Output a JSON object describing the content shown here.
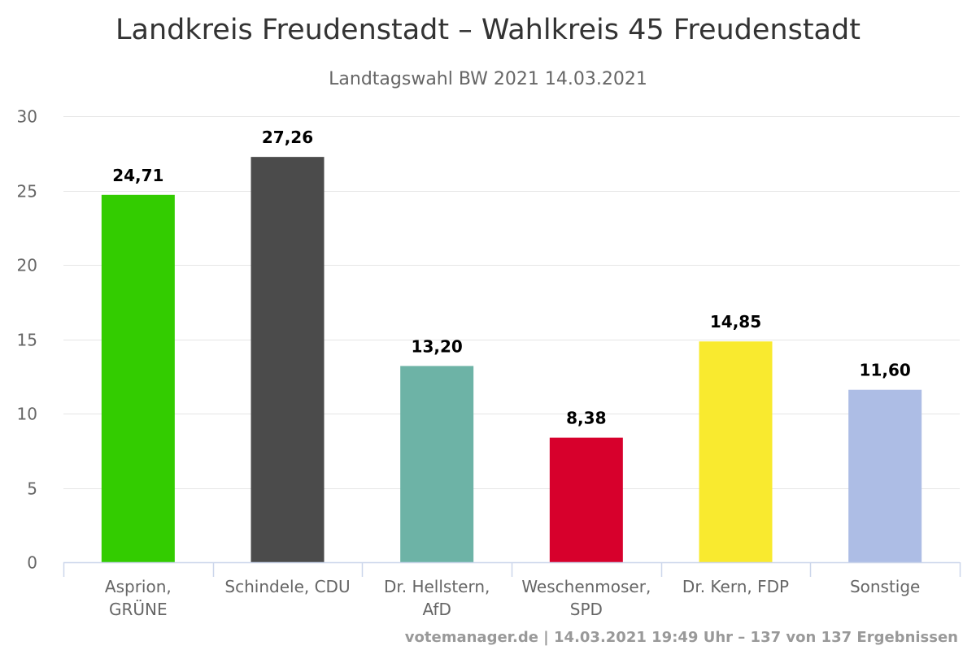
{
  "chart_data": {
    "type": "bar",
    "title": "Landkreis Freudenstadt – Wahlkreis 45 Freudenstadt",
    "subtitle": "Landtagswahl BW 2021 14.03.2021",
    "xlabel": "",
    "ylabel": "",
    "ylim": [
      0,
      30
    ],
    "yticks": [
      0,
      5,
      10,
      15,
      20,
      25,
      30
    ],
    "grid": true,
    "legend": "none",
    "categories": [
      [
        "Asprion,",
        "GRÜNE"
      ],
      [
        "Schindele, CDU"
      ],
      [
        "Dr. Hellstern,",
        "AfD"
      ],
      [
        "Weschenmoser,",
        "SPD"
      ],
      [
        "Dr. Kern, FDP"
      ],
      [
        "Sonstige"
      ]
    ],
    "values": [
      24.71,
      27.26,
      13.2,
      8.38,
      14.85,
      11.6
    ],
    "data_labels": [
      "24,71",
      "27,26",
      "13,20",
      "8,38",
      "14,85",
      "11,60"
    ],
    "colors": [
      "#33cc00",
      "#4b4b4b",
      "#6db3a6",
      "#d7002c",
      "#f9ea2f",
      "#adbde5"
    ]
  },
  "credits": "votemanager.de | 14.03.2021 19:49 Uhr – 137 von 137 Ergebnissen"
}
